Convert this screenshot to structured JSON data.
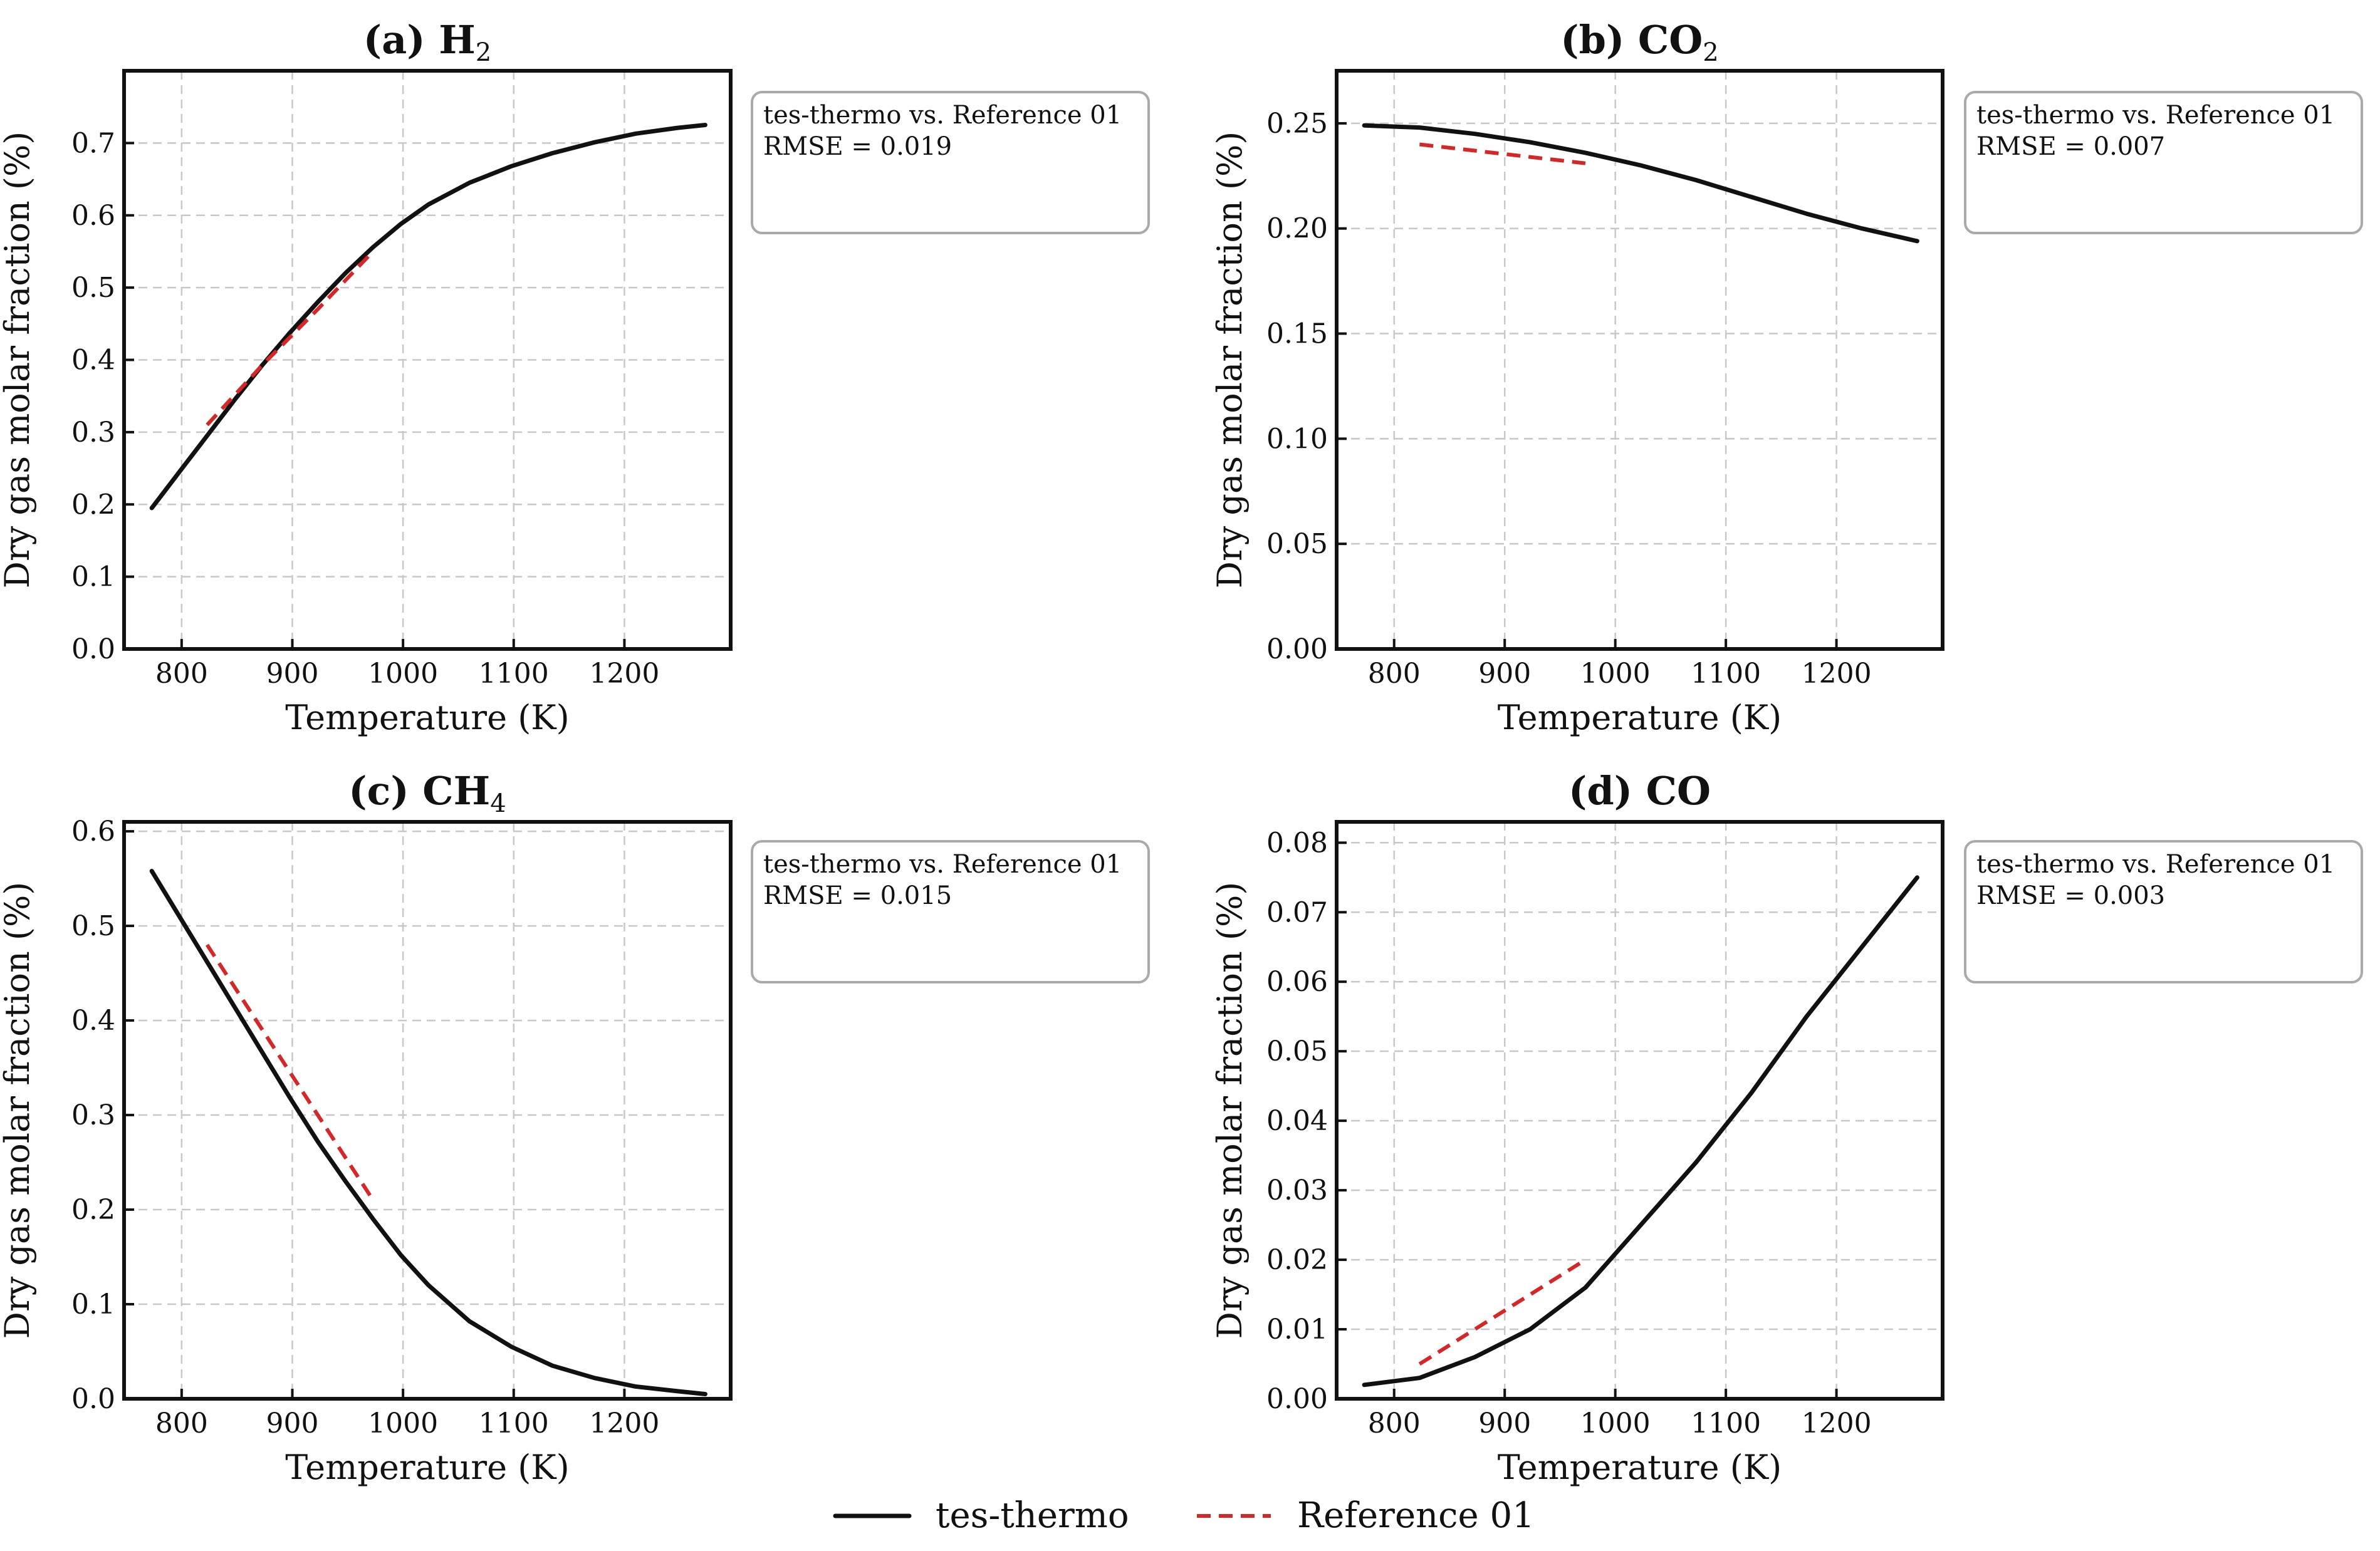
{
  "figure": {
    "legend": [
      {
        "label": "tes-thermo",
        "style": "solid",
        "color": "#111111"
      },
      {
        "label": "Reference 01",
        "style": "dashed",
        "color": "#d62728"
      }
    ]
  },
  "chart_data": [
    {
      "type": "line",
      "title": "(a) H",
      "title_sub": "2",
      "xlabel": "Temperature (K)",
      "ylabel": "Dry gas molar fraction (%)",
      "xlim": [
        748,
        1296
      ],
      "ylim": [
        0.0,
        0.8
      ],
      "xticks": [
        800,
        900,
        1000,
        1100,
        1200
      ],
      "xtick_labels": [
        "800",
        "900",
        "1000",
        "1100",
        "1200"
      ],
      "yticks": [
        0.0,
        0.1,
        0.2,
        0.3,
        0.4,
        0.5,
        0.6,
        0.7
      ],
      "ytick_labels": [
        "0.0",
        "0.1",
        "0.2",
        "0.3",
        "0.4",
        "0.5",
        "0.6",
        "0.7"
      ],
      "annotation": [
        "tes-thermo vs. Reference 01",
        "RMSE = 0.019"
      ],
      "series": [
        {
          "name": "tes-thermo",
          "style": "solid",
          "x": [
            773,
            798,
            823,
            848,
            873,
            898,
            923,
            948,
            973,
            998,
            1023,
            1060,
            1098,
            1135,
            1173,
            1210,
            1248,
            1273
          ],
          "y": [
            0.195,
            0.245,
            0.295,
            0.345,
            0.393,
            0.438,
            0.48,
            0.52,
            0.556,
            0.588,
            0.615,
            0.645,
            0.668,
            0.686,
            0.701,
            0.713,
            0.721,
            0.725
          ]
        },
        {
          "name": "Reference 01",
          "style": "dashed",
          "x": [
            823,
            873,
            923,
            973
          ],
          "y": [
            0.31,
            0.393,
            0.47,
            0.55
          ]
        }
      ]
    },
    {
      "type": "line",
      "title": "(b) CO",
      "title_sub": "2",
      "xlabel": "Temperature (K)",
      "ylabel": "Dry gas molar fraction (%)",
      "xlim": [
        748,
        1296
      ],
      "ylim": [
        0.0,
        0.275
      ],
      "xticks": [
        800,
        900,
        1000,
        1100,
        1200
      ],
      "xtick_labels": [
        "800",
        "900",
        "1000",
        "1100",
        "1200"
      ],
      "yticks": [
        0.0,
        0.05,
        0.1,
        0.15,
        0.2,
        0.25
      ],
      "ytick_labels": [
        "0.00",
        "0.05",
        "0.10",
        "0.15",
        "0.20",
        "0.25"
      ],
      "annotation": [
        "tes-thermo vs. Reference 01",
        "RMSE = 0.007"
      ],
      "series": [
        {
          "name": "tes-thermo",
          "style": "solid",
          "x": [
            773,
            823,
            873,
            923,
            973,
            1023,
            1073,
            1123,
            1173,
            1223,
            1273
          ],
          "y": [
            0.249,
            0.248,
            0.245,
            0.241,
            0.236,
            0.23,
            0.223,
            0.215,
            0.207,
            0.2,
            0.194
          ]
        },
        {
          "name": "Reference 01",
          "style": "dashed",
          "x": [
            823,
            873,
            923,
            973
          ],
          "y": [
            0.24,
            0.237,
            0.234,
            0.231
          ]
        }
      ]
    },
    {
      "type": "line",
      "title": "(c) CH",
      "title_sub": "4",
      "xlabel": "Temperature (K)",
      "ylabel": "Dry gas molar fraction (%)",
      "xlim": [
        748,
        1296
      ],
      "ylim": [
        0.0,
        0.61
      ],
      "xticks": [
        800,
        900,
        1000,
        1100,
        1200
      ],
      "xtick_labels": [
        "800",
        "900",
        "1000",
        "1100",
        "1200"
      ],
      "yticks": [
        0.0,
        0.1,
        0.2,
        0.3,
        0.4,
        0.5,
        0.6
      ],
      "ytick_labels": [
        "0.0",
        "0.1",
        "0.2",
        "0.3",
        "0.4",
        "0.5",
        "0.6"
      ],
      "annotation": [
        "tes-thermo vs. Reference 01",
        "RMSE = 0.015"
      ],
      "series": [
        {
          "name": "tes-thermo",
          "style": "solid",
          "x": [
            773,
            798,
            823,
            848,
            873,
            898,
            923,
            948,
            973,
            998,
            1023,
            1060,
            1098,
            1135,
            1173,
            1210,
            1248,
            1273
          ],
          "y": [
            0.558,
            0.51,
            0.462,
            0.414,
            0.366,
            0.318,
            0.272,
            0.23,
            0.19,
            0.152,
            0.12,
            0.082,
            0.055,
            0.035,
            0.022,
            0.013,
            0.008,
            0.005
          ]
        },
        {
          "name": "Reference 01",
          "style": "dashed",
          "x": [
            823,
            873,
            923,
            973
          ],
          "y": [
            0.48,
            0.39,
            0.3,
            0.21
          ]
        }
      ]
    },
    {
      "type": "line",
      "title": "(d) CO",
      "title_sub": "",
      "xlabel": "Temperature (K)",
      "ylabel": "Dry gas molar fraction (%)",
      "xlim": [
        748,
        1296
      ],
      "ylim": [
        0.0,
        0.083
      ],
      "xticks": [
        800,
        900,
        1000,
        1100,
        1200
      ],
      "xtick_labels": [
        "800",
        "900",
        "1000",
        "1100",
        "1200"
      ],
      "yticks": [
        0.0,
        0.01,
        0.02,
        0.03,
        0.04,
        0.05,
        0.06,
        0.07,
        0.08
      ],
      "ytick_labels": [
        "0.00",
        "0.01",
        "0.02",
        "0.03",
        "0.04",
        "0.05",
        "0.06",
        "0.07",
        "0.08"
      ],
      "annotation": [
        "tes-thermo vs. Reference 01",
        "RMSE = 0.003"
      ],
      "series": [
        {
          "name": "tes-thermo",
          "style": "solid",
          "x": [
            773,
            823,
            873,
            923,
            973,
            1023,
            1073,
            1123,
            1173,
            1223,
            1273
          ],
          "y": [
            0.002,
            0.003,
            0.006,
            0.01,
            0.016,
            0.025,
            0.034,
            0.044,
            0.055,
            0.065,
            0.075
          ]
        },
        {
          "name": "Reference 01",
          "style": "dashed",
          "x": [
            823,
            873,
            923,
            973
          ],
          "y": [
            0.005,
            0.01,
            0.015,
            0.02
          ]
        }
      ]
    }
  ]
}
